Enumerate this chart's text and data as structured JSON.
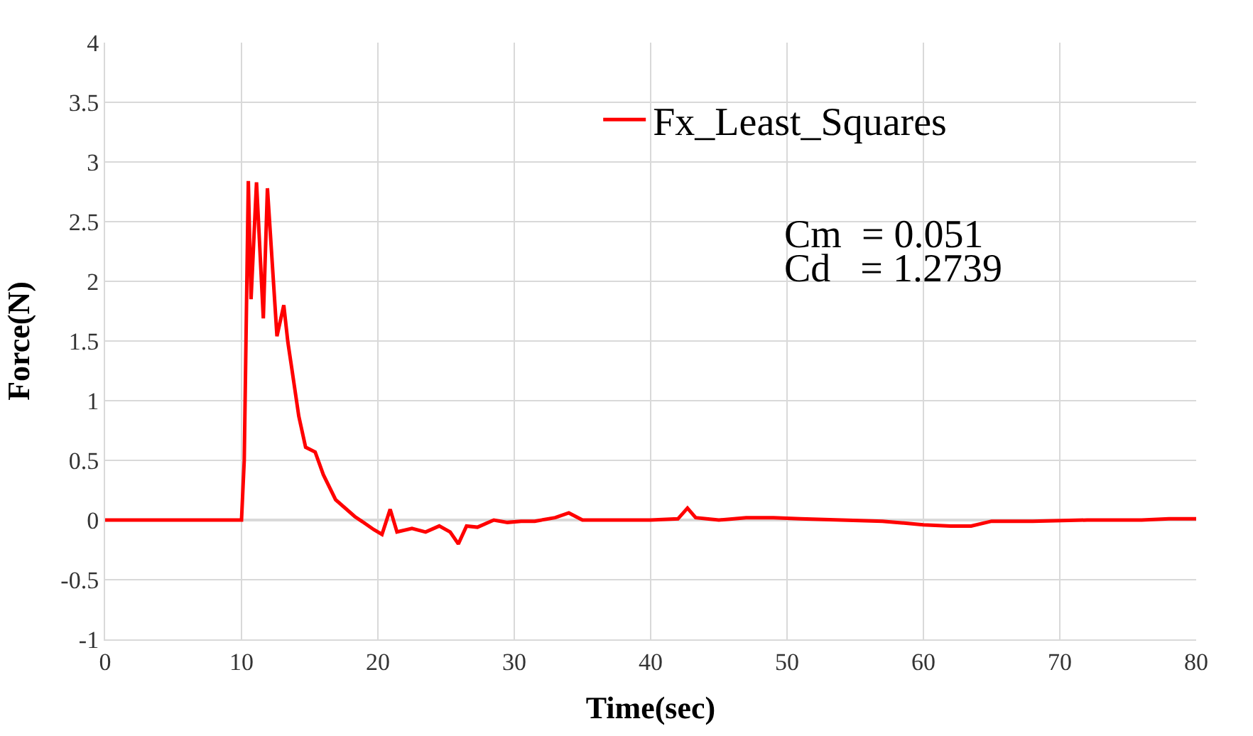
{
  "chart_data": {
    "type": "line",
    "xlabel": "Time(sec)",
    "ylabel": "Force(N)",
    "series": [
      {
        "name": "Fx_Least_Squares",
        "color": "#ff0000",
        "x": [
          0,
          5,
          10,
          10.2,
          10.5,
          10.7,
          11.1,
          11.6,
          11.9,
          12.6,
          13.1,
          13.4,
          13.7,
          14.2,
          14.7,
          15.4,
          16.0,
          16.9,
          18.3,
          19.2,
          19.7,
          20.3,
          20.9,
          21.4,
          22.5,
          23.5,
          24.5,
          25.3,
          25.9,
          26.5,
          27.3,
          28.5,
          29.5,
          30.5,
          31.5,
          33,
          34,
          35,
          36,
          38,
          40,
          42,
          42.7,
          43.3,
          45,
          47,
          49,
          51,
          54,
          57,
          60,
          62,
          63.5,
          65,
          68,
          72,
          76,
          78,
          80
        ],
        "values": [
          0,
          0,
          0,
          0.5,
          2.84,
          1.85,
          2.83,
          1.69,
          2.78,
          1.54,
          1.8,
          1.49,
          1.26,
          0.87,
          0.61,
          0.57,
          0.38,
          0.17,
          0.03,
          -0.04,
          -0.08,
          -0.12,
          0.09,
          -0.1,
          -0.07,
          -0.1,
          -0.05,
          -0.1,
          -0.2,
          -0.05,
          -0.06,
          0.0,
          -0.02,
          -0.01,
          -0.01,
          0.02,
          0.06,
          0.0,
          0.0,
          0.0,
          0.0,
          0.01,
          0.1,
          0.02,
          0.0,
          0.02,
          0.02,
          0.01,
          0.0,
          -0.01,
          -0.04,
          -0.05,
          -0.05,
          -0.01,
          -0.01,
          0.0,
          0.0,
          0.01,
          0.01
        ]
      }
    ],
    "xlim": [
      0,
      80
    ],
    "xticks": [
      0,
      10,
      20,
      30,
      40,
      50,
      60,
      70,
      80
    ],
    "ylim": [
      -1,
      4
    ],
    "yticks": [
      -1,
      -0.5,
      0,
      0.5,
      1,
      1.5,
      2,
      2.5,
      3,
      3.5,
      4
    ],
    "grid": true,
    "legend": "top right",
    "annotations": [
      "Cm  = 0.051",
      "Cd   = 1.2739"
    ]
  }
}
